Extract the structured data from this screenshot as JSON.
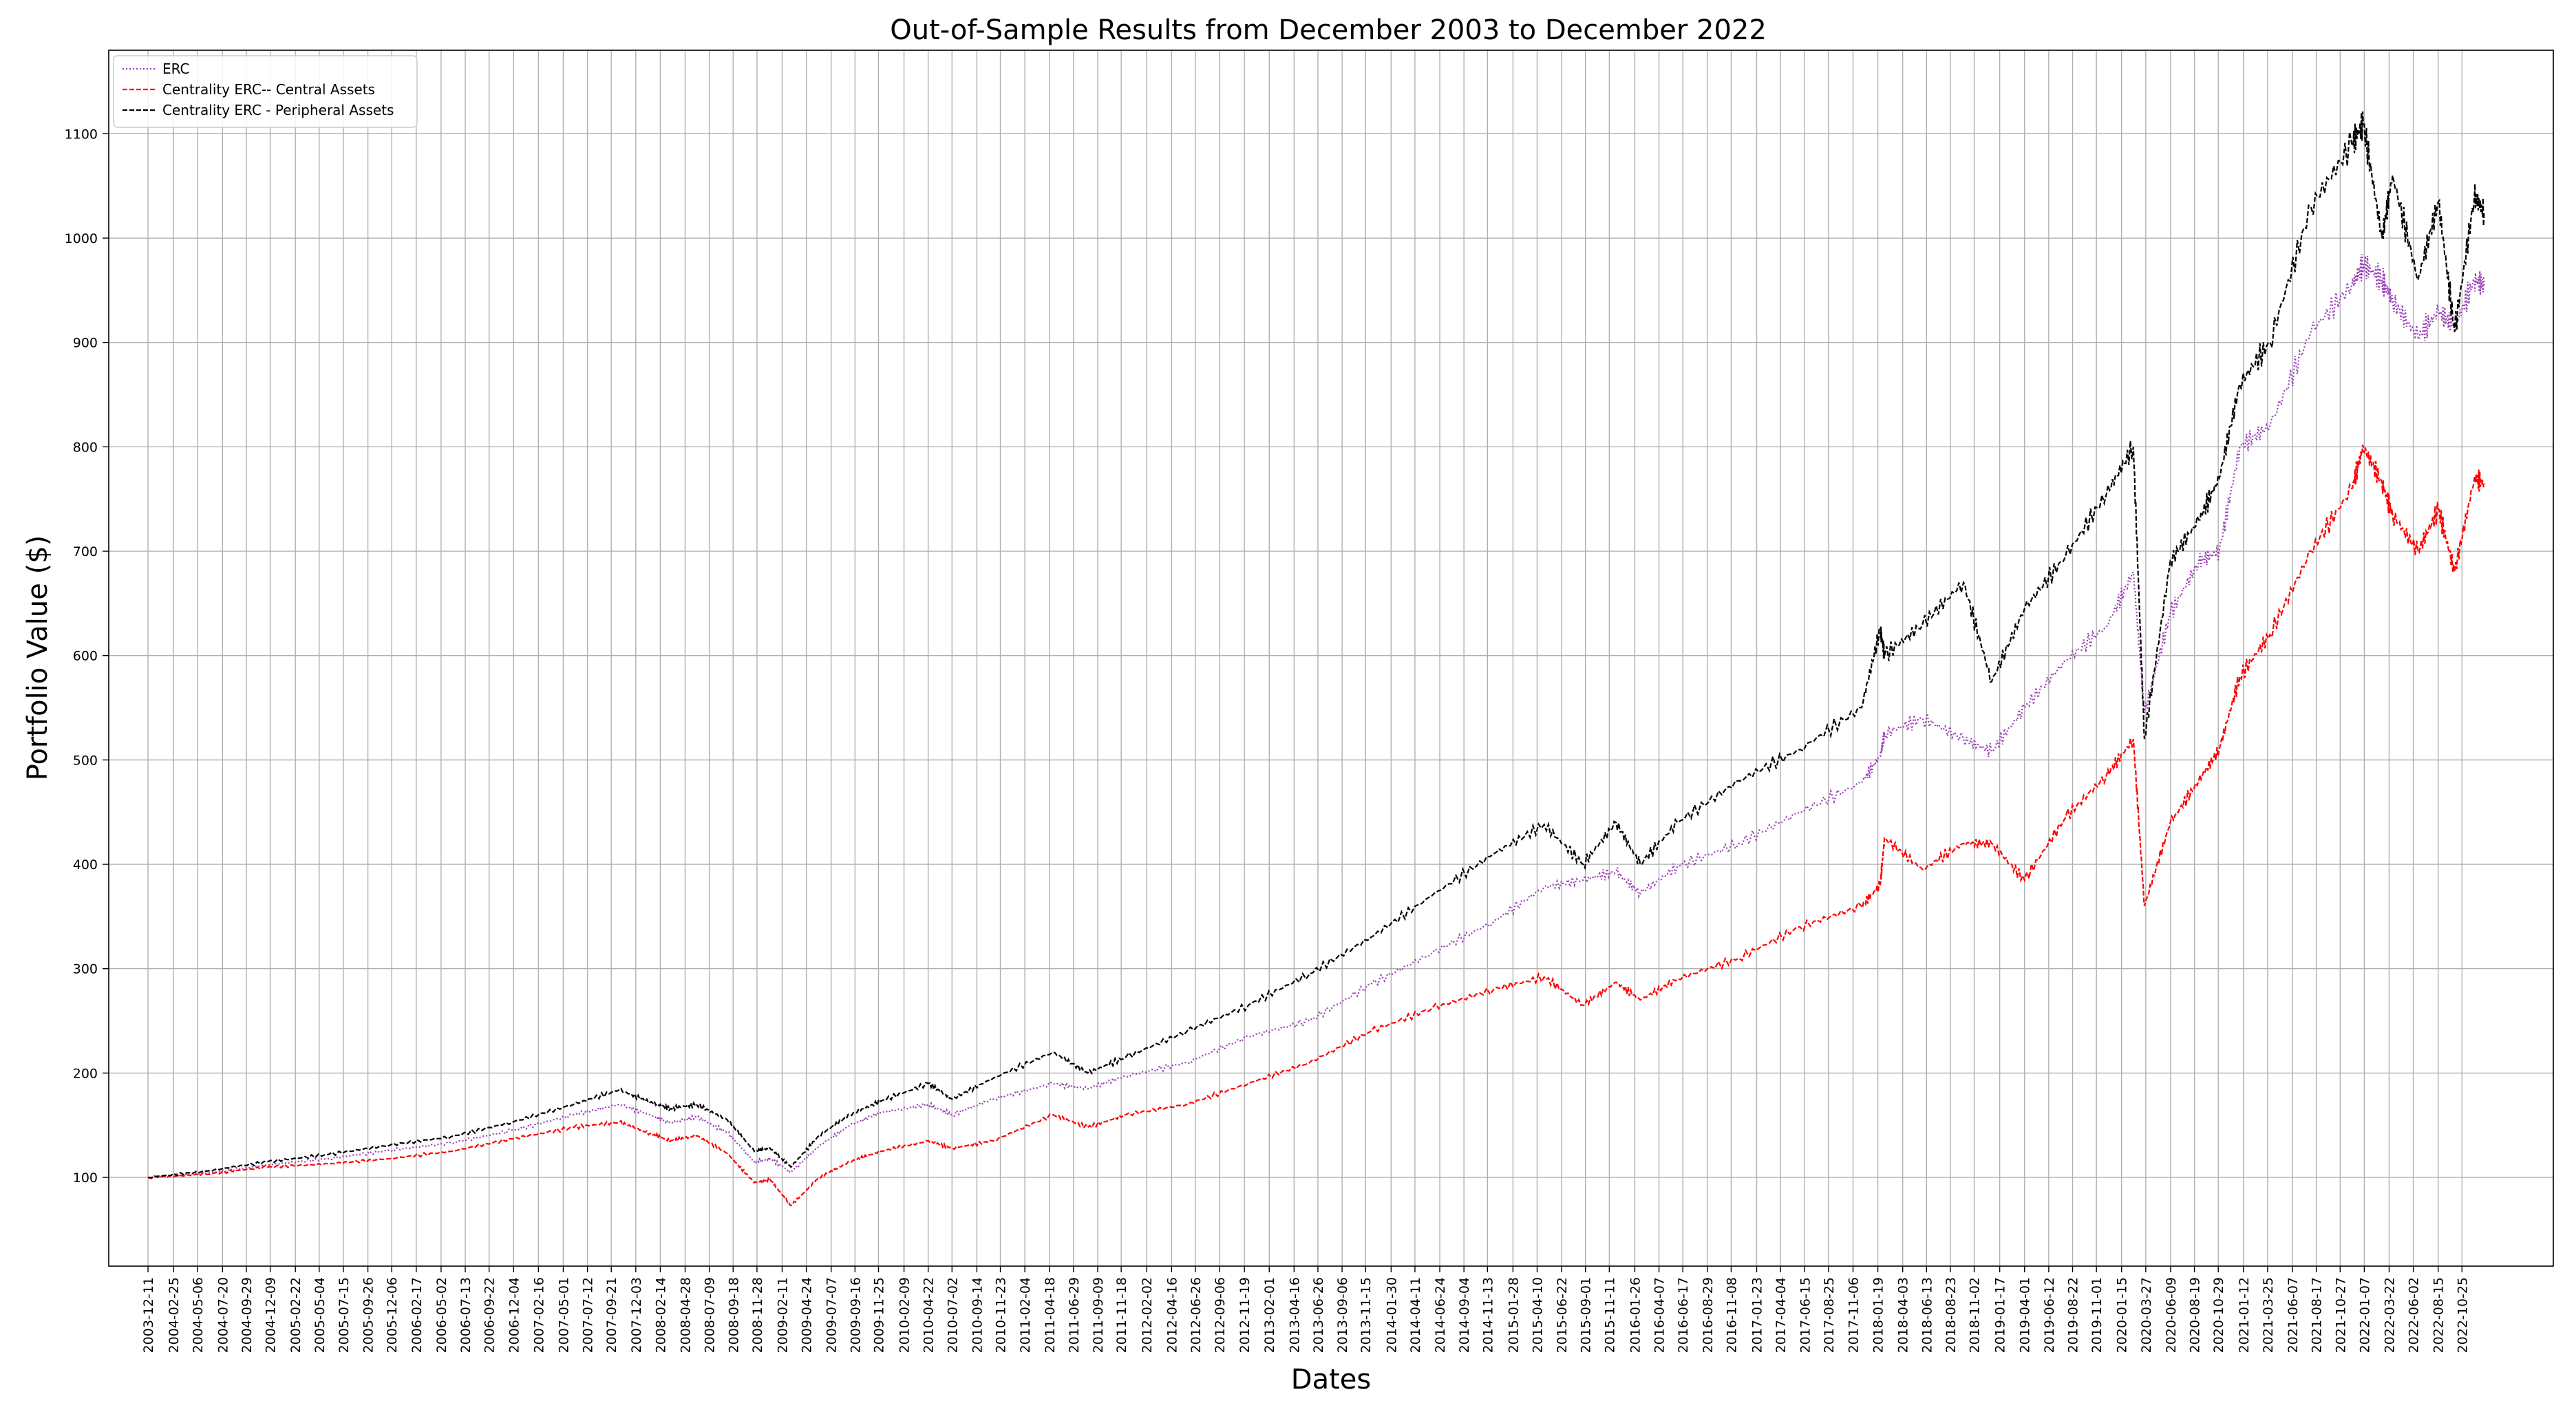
{
  "chart_data": {
    "type": "line",
    "title": "Out-of-Sample Results from December 2003 to December 2022",
    "xlabel": "Dates",
    "ylabel": "Portfolio Value ($)",
    "ylim": [
      15,
      1180
    ],
    "xlim": [
      "2003-08-16",
      "2023-07-24"
    ],
    "grid": true,
    "legend_position": "top-left",
    "y_ticks": [
      100,
      200,
      300,
      400,
      500,
      600,
      700,
      800,
      900,
      1000,
      1100
    ],
    "x_tick_labels": [
      "2003-12-11",
      "2004-02-25",
      "2004-05-06",
      "2004-07-20",
      "2004-09-29",
      "2004-12-09",
      "2005-02-22",
      "2005-05-04",
      "2005-07-15",
      "2005-09-26",
      "2005-12-06",
      "2006-02-17",
      "2006-05-02",
      "2006-07-13",
      "2006-09-22",
      "2006-12-04",
      "2007-02-16",
      "2007-05-01",
      "2007-07-12",
      "2007-09-21",
      "2007-12-03",
      "2008-02-14",
      "2008-04-28",
      "2008-07-09",
      "2008-09-18",
      "2008-11-28",
      "2009-02-11",
      "2009-04-24",
      "2009-07-07",
      "2009-09-16",
      "2009-11-25",
      "2010-02-09",
      "2010-04-22",
      "2010-07-02",
      "2010-09-14",
      "2010-11-23",
      "2011-02-04",
      "2011-04-18",
      "2011-06-29",
      "2011-09-09",
      "2011-11-18",
      "2012-02-02",
      "2012-04-16",
      "2012-06-26",
      "2012-09-06",
      "2012-11-19",
      "2013-02-01",
      "2013-04-16",
      "2013-06-26",
      "2013-09-06",
      "2013-11-15",
      "2014-01-30",
      "2014-04-11",
      "2014-06-24",
      "2014-09-04",
      "2014-11-13",
      "2015-01-28",
      "2015-04-10",
      "2015-06-22",
      "2015-09-01",
      "2015-11-11",
      "2016-01-26",
      "2016-04-07",
      "2016-06-17",
      "2016-08-29",
      "2016-11-08",
      "2017-01-23",
      "2017-04-04",
      "2017-06-15",
      "2017-08-25",
      "2017-11-06",
      "2018-01-19",
      "2018-04-03",
      "2018-06-13",
      "2018-08-23",
      "2018-11-02",
      "2019-01-17",
      "2019-04-01",
      "2019-06-12",
      "2019-08-22",
      "2019-11-01",
      "2020-01-15",
      "2020-03-27",
      "2020-06-09",
      "2020-08-19",
      "2020-10-29",
      "2021-01-12",
      "2021-03-25",
      "2021-06-07",
      "2021-08-17",
      "2021-10-27",
      "2022-01-07",
      "2022-03-22",
      "2022-06-02",
      "2022-08-15",
      "2022-10-25"
    ],
    "x": [
      "2003-12-11",
      "2004-06-01",
      "2004-12-01",
      "2005-06-01",
      "2005-12-01",
      "2006-06-01",
      "2006-12-01",
      "2007-06-01",
      "2007-10-15",
      "2008-01-15",
      "2008-03-15",
      "2008-06-01",
      "2008-09-01",
      "2008-11-20",
      "2009-01-06",
      "2009-03-09",
      "2009-06-01",
      "2009-09-01",
      "2009-12-01",
      "2010-04-23",
      "2010-07-02",
      "2010-11-01",
      "2011-04-29",
      "2011-08-10",
      "2011-12-01",
      "2012-06-01",
      "2012-12-01",
      "2013-06-01",
      "2013-12-01",
      "2014-06-01",
      "2014-12-01",
      "2015-05-01",
      "2015-08-25",
      "2015-12-01",
      "2016-02-11",
      "2016-06-01",
      "2016-12-01",
      "2017-06-01",
      "2017-12-01",
      "2018-01-26",
      "2018-02-08",
      "2018-06-01",
      "2018-10-01",
      "2018-12-24",
      "2019-04-01",
      "2019-08-01",
      "2019-12-01",
      "2020-02-19",
      "2020-03-23",
      "2020-06-08",
      "2020-09-01",
      "2020-11-01",
      "2021-01-01",
      "2021-04-01",
      "2021-08-01",
      "2021-12-01",
      "2022-01-04",
      "2022-03-01",
      "2022-04-01",
      "2022-06-16",
      "2022-08-16",
      "2022-10-03",
      "2022-12-01",
      "2022-12-30"
    ],
    "series": [
      {
        "name": "ERC",
        "color": "#9a3fb5",
        "style": "dotted",
        "values": [
          100,
          104,
          112,
          118,
          126,
          133,
          145,
          160,
          170,
          160,
          152,
          158,
          143,
          115,
          118,
          105,
          130,
          150,
          162,
          170,
          160,
          175,
          190,
          185,
          197,
          210,
          235,
          250,
          285,
          315,
          345,
          378,
          385,
          393,
          372,
          398,
          420,
          450,
          478,
          504,
          525,
          540,
          520,
          508,
          550,
          595,
          628,
          680,
          545,
          640,
          690,
          700,
          800,
          820,
          910,
          955,
          975,
          960,
          940,
          905,
          930,
          915,
          960,
          955
        ]
      },
      {
        "name": "Centrality ERC-- Central Assets",
        "color": "#ff0000",
        "style": "dashed",
        "values": [
          100,
          103,
          110,
          113,
          118,
          125,
          137,
          148,
          153,
          142,
          135,
          140,
          123,
          95,
          98,
          73,
          100,
          115,
          125,
          135,
          128,
          135,
          160,
          148,
          160,
          170,
          190,
          210,
          240,
          262,
          280,
          292,
          265,
          287,
          270,
          290,
          310,
          340,
          360,
          380,
          425,
          395,
          420,
          420,
          385,
          445,
          485,
          520,
          360,
          440,
          480,
          510,
          580,
          620,
          700,
          760,
          800,
          765,
          735,
          700,
          740,
          680,
          770,
          765
        ]
      },
      {
        "name": "Centrality ERC - Peripheral Assets",
        "color": "#000000",
        "style": "dashed",
        "values": [
          100,
          106,
          115,
          122,
          131,
          139,
          153,
          170,
          184,
          172,
          166,
          170,
          155,
          125,
          128,
          110,
          140,
          160,
          173,
          190,
          175,
          195,
          220,
          200,
          215,
          240,
          265,
          295,
          330,
          370,
          410,
          438,
          400,
          440,
          400,
          440,
          480,
          510,
          550,
          625,
          600,
          630,
          670,
          575,
          645,
          695,
          755,
          800,
          520,
          690,
          730,
          770,
          860,
          900,
          1030,
          1090,
          1110,
          1000,
          1060,
          960,
          1035,
          910,
          1040,
          1025
        ]
      }
    ]
  }
}
